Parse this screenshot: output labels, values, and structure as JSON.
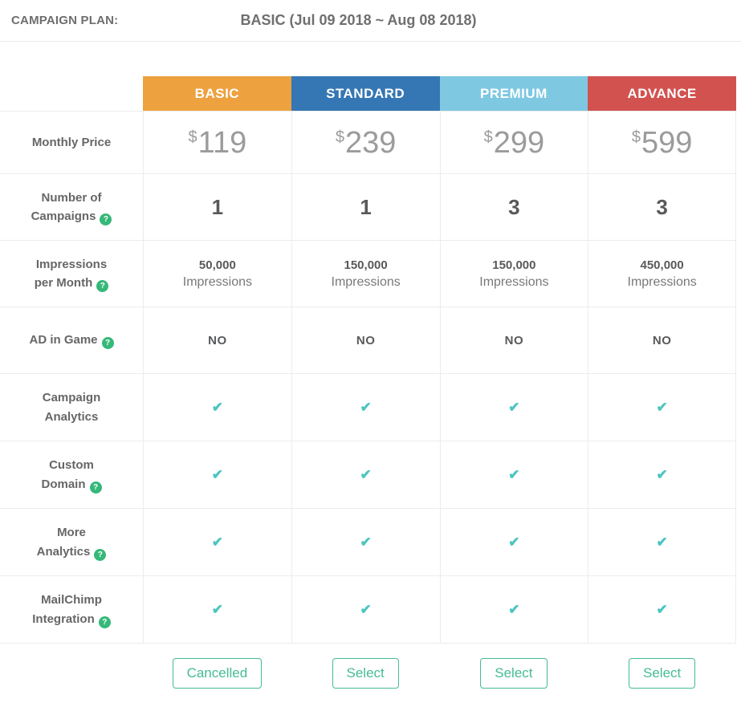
{
  "topbar": {
    "label": "CAMPAIGN PLAN:",
    "title": "BASIC (Jul 09 2018 ~ Aug 08 2018)"
  },
  "pricing": {
    "currency": "$",
    "impressions_word": "Impressions"
  },
  "icons": {
    "help": "?",
    "check": "✔"
  },
  "colors": {
    "help": "#35b878",
    "check": "#4cc5c1",
    "button": "#45bb93"
  },
  "rows": {
    "monthly_price": {
      "label": "Monthly Price"
    },
    "campaigns": {
      "line1": "Number of",
      "line2": "Campaigns"
    },
    "impressions": {
      "line1": "Impressions",
      "line2": "per Month"
    },
    "ad_in_game": {
      "label": "AD in Game"
    },
    "campaign_analytics": {
      "line1": "Campaign",
      "line2": "Analytics"
    },
    "custom_domain": {
      "line1": "Custom",
      "line2": "Domain"
    },
    "more_analytics": {
      "line1": "More",
      "line2": "Analytics"
    },
    "mailchimp": {
      "line1": "MailChimp",
      "line2": "Integration"
    }
  },
  "plans": [
    {
      "name": "BASIC",
      "color": "#eda13f",
      "price": "119",
      "campaigns": "1",
      "impressions": "50,000",
      "ad_in_game": "NO",
      "button": "Cancelled"
    },
    {
      "name": "STANDARD",
      "color": "#3577b4",
      "price": "239",
      "campaigns": "1",
      "impressions": "150,000",
      "ad_in_game": "NO",
      "button": "Select"
    },
    {
      "name": "PREMIUM",
      "color": "#7ec8e2",
      "price": "299",
      "campaigns": "3",
      "impressions": "150,000",
      "ad_in_game": "NO",
      "button": "Select"
    },
    {
      "name": "ADVANCE",
      "color": "#d25250",
      "price": "599",
      "campaigns": "3",
      "impressions": "450,000",
      "ad_in_game": "NO",
      "button": "Select"
    }
  ]
}
